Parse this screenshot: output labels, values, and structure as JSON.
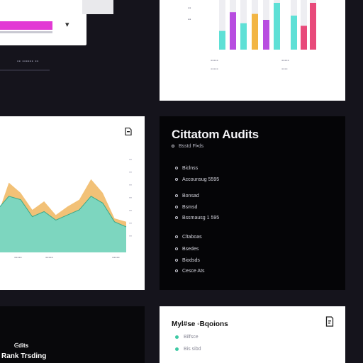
{
  "top_left_card": {
    "chevron": "▾",
    "caption": "▪▪ ▪▪▪▪▪▪ ▪▪"
  },
  "bar_chart": {
    "colors": [
      "#5ee0d6",
      "#b84de0",
      "#f2b544",
      "#e84a7a"
    ],
    "y_tick_labels": [
      "▪▪",
      "▪▪"
    ],
    "x_tick_labels": [
      "▪▪▪▪▪",
      "▪▪▪▪▪",
      "▪▪▪▪▪",
      "▪▪▪▪"
    ],
    "group1": [
      44,
      88,
      62,
      84,
      70,
      110
    ],
    "group2": [
      80,
      56,
      110
    ]
  },
  "line_chart": {
    "area_colors": [
      "#f2c177",
      "#7dd6bf"
    ],
    "x_tick_labels": [
      "▪▪▪▪▪",
      "▪▪▪▪▪",
      "▪▪▪▪▪"
    ],
    "orange": [
      42,
      82,
      70,
      50,
      60,
      44,
      54,
      62,
      86,
      70,
      40,
      36
    ],
    "teal": [
      50,
      66,
      62,
      42,
      48,
      38,
      44,
      50,
      66,
      58,
      36,
      30
    ]
  },
  "audit_panel": {
    "title": "Cittatom Audits",
    "subtitle": "Bsstd Fl▪ds",
    "items": [
      "Biclnss",
      "Accounsug 5595",
      "Bonsad",
      "Bsmsd",
      "Bssmausg 1 595",
      "Cltaboas",
      "Bsedes",
      "Biodsds",
      "Cesce Ats"
    ]
  },
  "bottom_left": {
    "line1": "ᕮdits",
    "line2": "Rank Trsding"
  },
  "bottom_right": {
    "title": "Myl#se  ◦Bqoions",
    "items": [
      "Bilfsce",
      "Bis sibd"
    ]
  }
}
